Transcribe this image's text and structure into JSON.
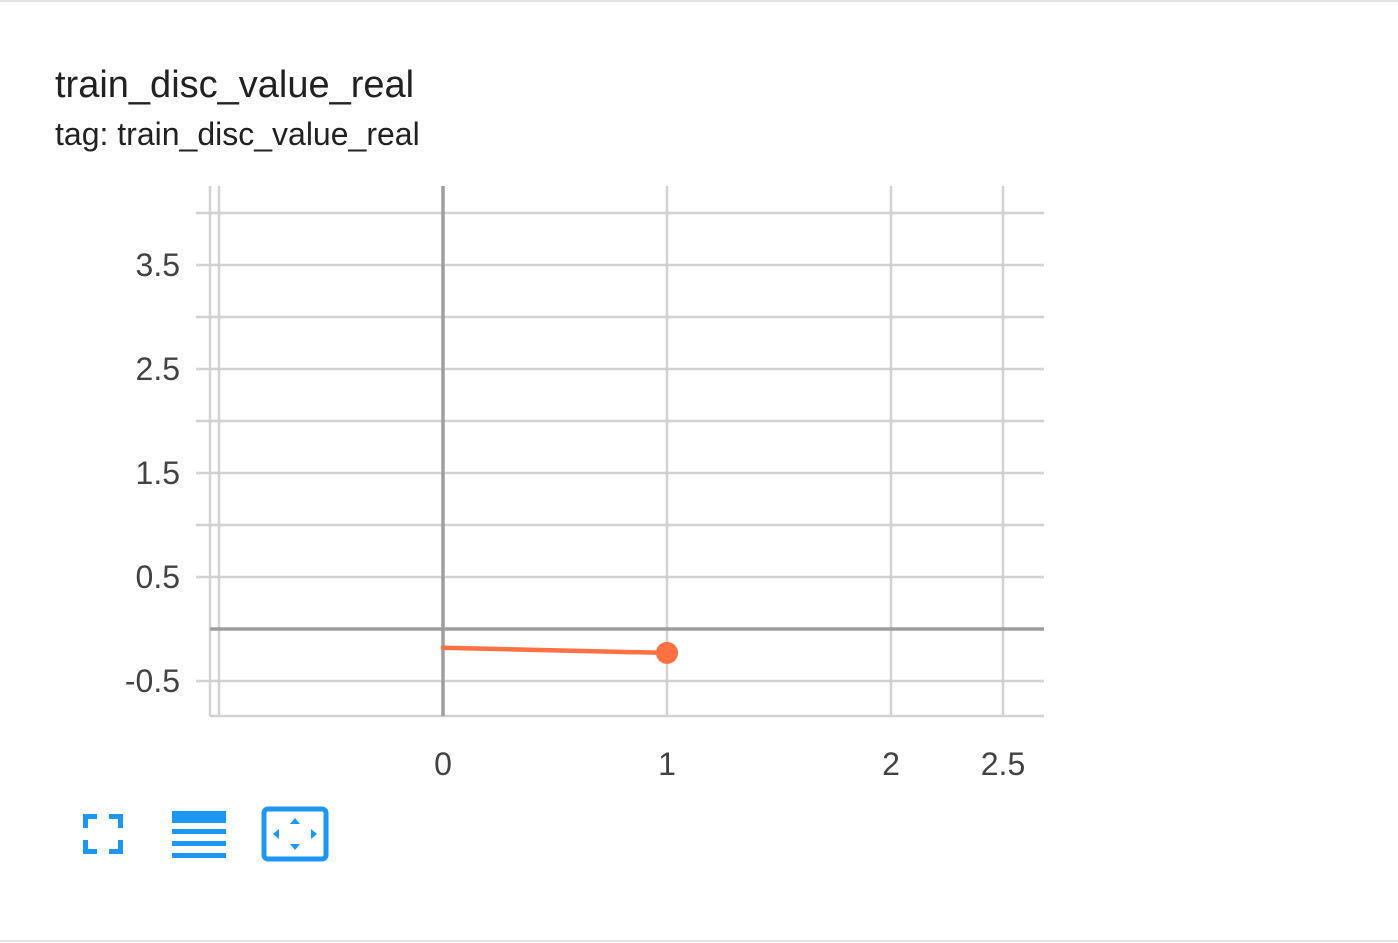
{
  "card": {
    "title": "train_disc_value_real",
    "subtitle": "tag: train_disc_value_real"
  },
  "toolbar": {
    "fullscreen_icon": "fullscreen-icon",
    "log_scale_icon": "menu-lines-icon",
    "fit_domain_icon": "fit-screen-icon",
    "accent_color": "#1e97f3"
  },
  "chart_data": {
    "type": "line",
    "title": "train_disc_value_real",
    "xlabel": "",
    "ylabel": "",
    "x_ticks": [
      "0",
      "1",
      "2",
      "2.5"
    ],
    "y_ticks": [
      "3.5",
      "2.5",
      "1.5",
      "0.5",
      "-0.5"
    ],
    "xlim": [
      -1,
      2.7
    ],
    "ylim": [
      -0.85,
      4.3
    ],
    "grid": true,
    "series": [
      {
        "color": "#ff7043",
        "x": [
          0,
          1
        ],
        "y": [
          -0.18,
          -0.23
        ]
      }
    ]
  }
}
